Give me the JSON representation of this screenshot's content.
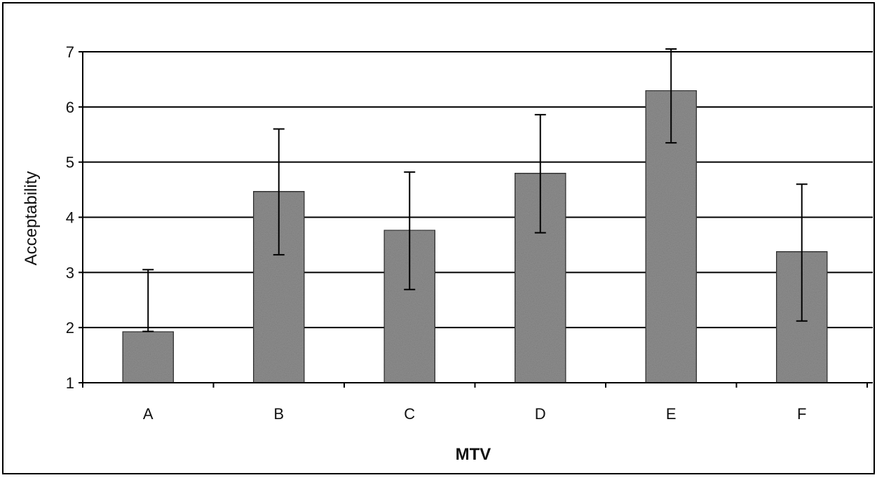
{
  "chart_data": {
    "type": "bar",
    "title": "",
    "xlabel": "MTV",
    "ylabel": "Acceptability",
    "categories": [
      "A",
      "B",
      "C",
      "D",
      "E",
      "F"
    ],
    "values": [
      1.93,
      4.47,
      3.77,
      4.8,
      6.3,
      3.38
    ],
    "error_upper": [
      3.05,
      5.6,
      4.82,
      5.86,
      7.05,
      4.6
    ],
    "error_lower": [
      1.93,
      3.32,
      2.69,
      3.72,
      5.35,
      2.12
    ],
    "ylim": [
      1,
      7
    ],
    "yticks": [
      "1",
      "2",
      "3",
      "4",
      "5",
      "6",
      "7"
    ],
    "grid": true,
    "legend": "none",
    "colors": {
      "bar_fill": "#8f8f8f",
      "bar_stroke": "#333333",
      "gridline": "#000000",
      "axis": "#000000",
      "background": "#ffffff"
    }
  }
}
